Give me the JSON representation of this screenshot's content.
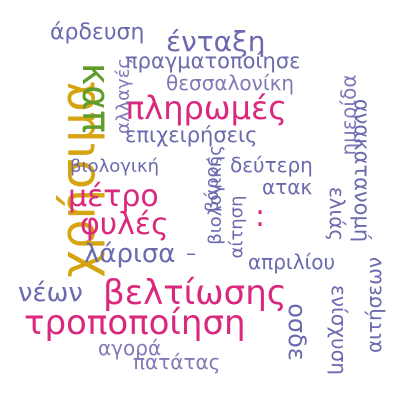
{
  "colors": {
    "background": "#ffffff",
    "gold": "#d6a311",
    "green": "#5f9c2a",
    "magenta": "#d9287d",
    "purple": "#6b6aae",
    "lavender": "#7f7ab7"
  },
  "words": [
    {
      "text": "χρήσιμα",
      "color": "gold",
      "orientation": "vertical-up"
    },
    {
      "text": "καπ",
      "color": "green",
      "orientation": "vertical-down"
    },
    {
      "text": "πληρωμές",
      "color": "magenta",
      "orientation": "horizontal"
    },
    {
      "text": "μέτρο",
      "color": "magenta",
      "orientation": "horizontal"
    },
    {
      "text": "φυλές",
      "color": "magenta",
      "orientation": "horizontal"
    },
    {
      "text": "βελτίωσης",
      "color": "magenta",
      "orientation": "horizontal"
    },
    {
      "text": "τροποποίηση",
      "color": "magenta",
      "orientation": "horizontal"
    },
    {
      "text": "ένταξη",
      "color": "purple",
      "orientation": "horizontal"
    },
    {
      "text": "άρδευση",
      "color": "purple",
      "orientation": "horizontal"
    },
    {
      "text": "πραγματοποίησε",
      "color": "purple",
      "orientation": "horizontal"
    },
    {
      "text": "θεσσαλονίκη",
      "color": "lavender",
      "orientation": "horizontal"
    },
    {
      "text": "αλλαγές",
      "color": "lavender",
      "orientation": "vertical-up"
    },
    {
      "text": "επιχειρήσεις",
      "color": "purple",
      "orientation": "horizontal"
    },
    {
      "text": "ημερίδα",
      "color": "lavender",
      "orientation": "vertical-up"
    },
    {
      "text": "ανακατανομή",
      "color": "purple",
      "orientation": "vertical-down"
    },
    {
      "text": "βιολογική",
      "color": "purple",
      "orientation": "horizontal"
    },
    {
      "text": "δεύτερη",
      "color": "purple",
      "orientation": "horizontal"
    },
    {
      "text": "βάρος",
      "color": "purple",
      "orientation": "vertical-up"
    },
    {
      "text": "βιολογικής",
      "color": "purple",
      "orientation": "vertical-up"
    },
    {
      "text": "αίτηση",
      "color": "purple",
      "orientation": "vertical-up"
    },
    {
      "text": "ατακ",
      "color": "purple",
      "orientation": "horizontal"
    },
    {
      "text": "ελιάς",
      "color": "purple",
      "orientation": "vertical-down"
    },
    {
      "text": "λάρισα",
      "color": "purple",
      "orientation": "horizontal"
    },
    {
      "text": "απριλίου",
      "color": "purple",
      "orientation": "horizontal"
    },
    {
      "text": "νέων",
      "color": "purple",
      "orientation": "horizontal"
    },
    {
      "text": "αιτήσεων",
      "color": "purple",
      "orientation": "vertical-up"
    },
    {
      "text": "οσδε",
      "color": "purple",
      "orientation": "vertical-down"
    },
    {
      "text": "ενίσχυση",
      "color": "purple",
      "orientation": "vertical-down"
    },
    {
      "text": "αγορά",
      "color": "lavender",
      "orientation": "horizontal"
    },
    {
      "text": "πατάτας",
      "color": "lavender",
      "orientation": "horizontal"
    },
    {
      "text": "–",
      "color": "purple",
      "orientation": "horizontal"
    },
    {
      "text": ":",
      "color": "magenta",
      "orientation": "horizontal"
    }
  ]
}
